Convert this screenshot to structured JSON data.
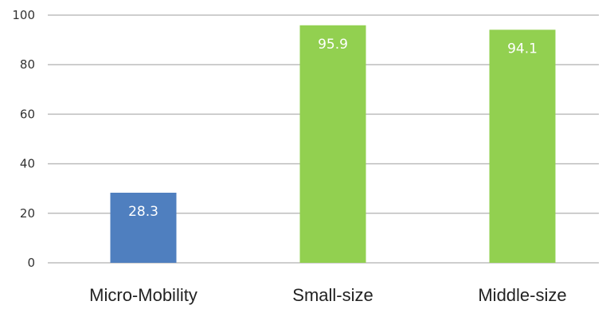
{
  "chart_data": {
    "type": "bar",
    "categories": [
      "Micro-Mobility",
      "Small-size",
      "Middle-size"
    ],
    "values": [
      28.3,
      95.9,
      94.1
    ],
    "value_labels": [
      "28.3",
      "95.9",
      "94.1"
    ],
    "bar_colors": [
      "#4f7fbf",
      "#92d050",
      "#92d050"
    ],
    "title": "",
    "xlabel": "",
    "ylabel": "",
    "ylim": [
      0,
      100
    ],
    "yticks": [
      0,
      20,
      40,
      60,
      80,
      100
    ],
    "ytick_labels": [
      "0",
      "20",
      "40",
      "60",
      "80",
      "100"
    ],
    "grid": true,
    "legend": "none"
  }
}
